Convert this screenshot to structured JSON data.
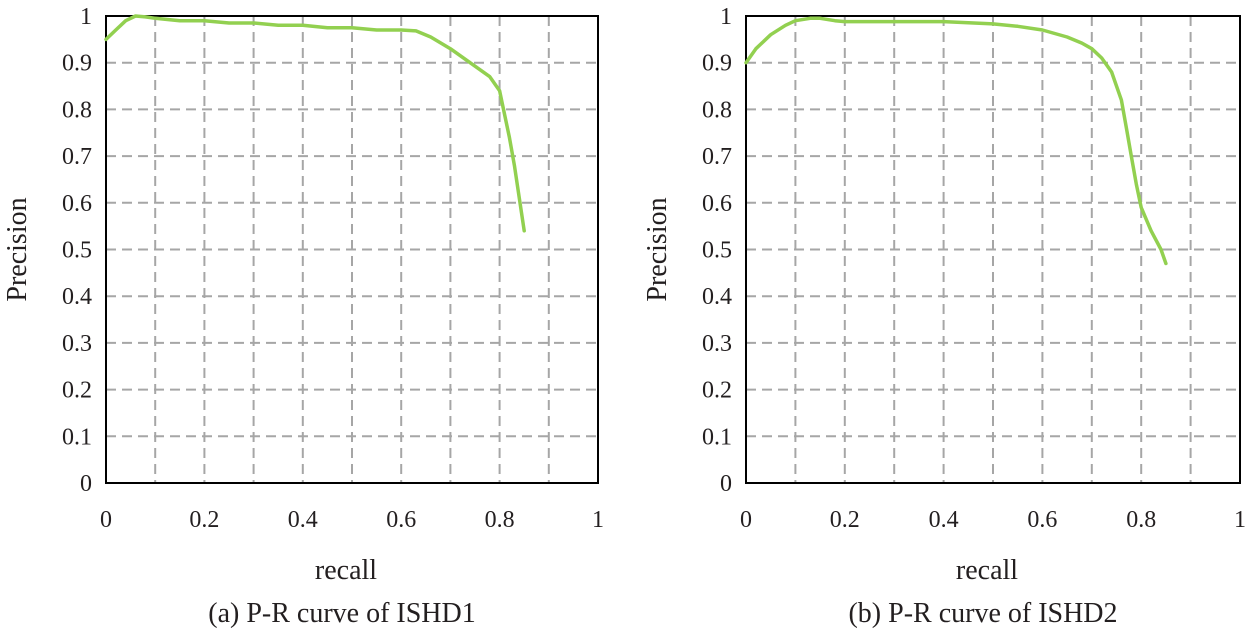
{
  "chart_data": [
    {
      "type": "line",
      "caption": "(a) P-R curve of ISHD1",
      "xlabel": "recall",
      "ylabel": "Precision",
      "xlim": [
        0,
        1
      ],
      "ylim": [
        0,
        1
      ],
      "x_ticks": [
        "0",
        "0.2",
        "0.4",
        "0.6",
        "0.8",
        "1"
      ],
      "y_ticks": [
        "0",
        "0.1",
        "0.2",
        "0.3",
        "0.4",
        "0.5",
        "0.6",
        "0.7",
        "0.8",
        "0.9",
        "1"
      ],
      "grid": true,
      "series": [
        {
          "name": "P-R curve",
          "color": "#92d050",
          "x": [
            0.0,
            0.02,
            0.04,
            0.06,
            0.08,
            0.1,
            0.15,
            0.2,
            0.25,
            0.3,
            0.35,
            0.4,
            0.45,
            0.5,
            0.55,
            0.6,
            0.63,
            0.66,
            0.7,
            0.74,
            0.78,
            0.8,
            0.81,
            0.82,
            0.83,
            0.84,
            0.85
          ],
          "y": [
            0.95,
            0.97,
            0.99,
            1.0,
            0.998,
            0.995,
            0.99,
            0.99,
            0.985,
            0.985,
            0.98,
            0.98,
            0.975,
            0.975,
            0.97,
            0.97,
            0.968,
            0.955,
            0.93,
            0.9,
            0.87,
            0.84,
            0.79,
            0.74,
            0.68,
            0.61,
            0.54
          ]
        }
      ]
    },
    {
      "type": "line",
      "caption": "(b) P-R curve of ISHD2",
      "xlabel": "recall",
      "ylabel": "Precision",
      "xlim": [
        0,
        1
      ],
      "ylim": [
        0,
        1
      ],
      "x_ticks": [
        "0",
        "0.2",
        "0.4",
        "0.6",
        "0.8",
        "1"
      ],
      "y_ticks": [
        "0",
        "0.1",
        "0.2",
        "0.3",
        "0.4",
        "0.5",
        "0.6",
        "0.7",
        "0.8",
        "0.9",
        "1"
      ],
      "grid": true,
      "series": [
        {
          "name": "P-R curve",
          "color": "#92d050",
          "x": [
            0.0,
            0.02,
            0.05,
            0.08,
            0.1,
            0.13,
            0.15,
            0.18,
            0.2,
            0.3,
            0.4,
            0.5,
            0.55,
            0.6,
            0.65,
            0.68,
            0.7,
            0.72,
            0.74,
            0.76,
            0.77,
            0.78,
            0.79,
            0.8,
            0.82,
            0.84,
            0.85
          ],
          "y": [
            0.9,
            0.93,
            0.96,
            0.98,
            0.99,
            0.995,
            0.995,
            0.99,
            0.988,
            0.988,
            0.988,
            0.983,
            0.978,
            0.97,
            0.955,
            0.942,
            0.93,
            0.91,
            0.88,
            0.82,
            0.76,
            0.7,
            0.64,
            0.59,
            0.54,
            0.5,
            0.47
          ]
        }
      ]
    }
  ]
}
